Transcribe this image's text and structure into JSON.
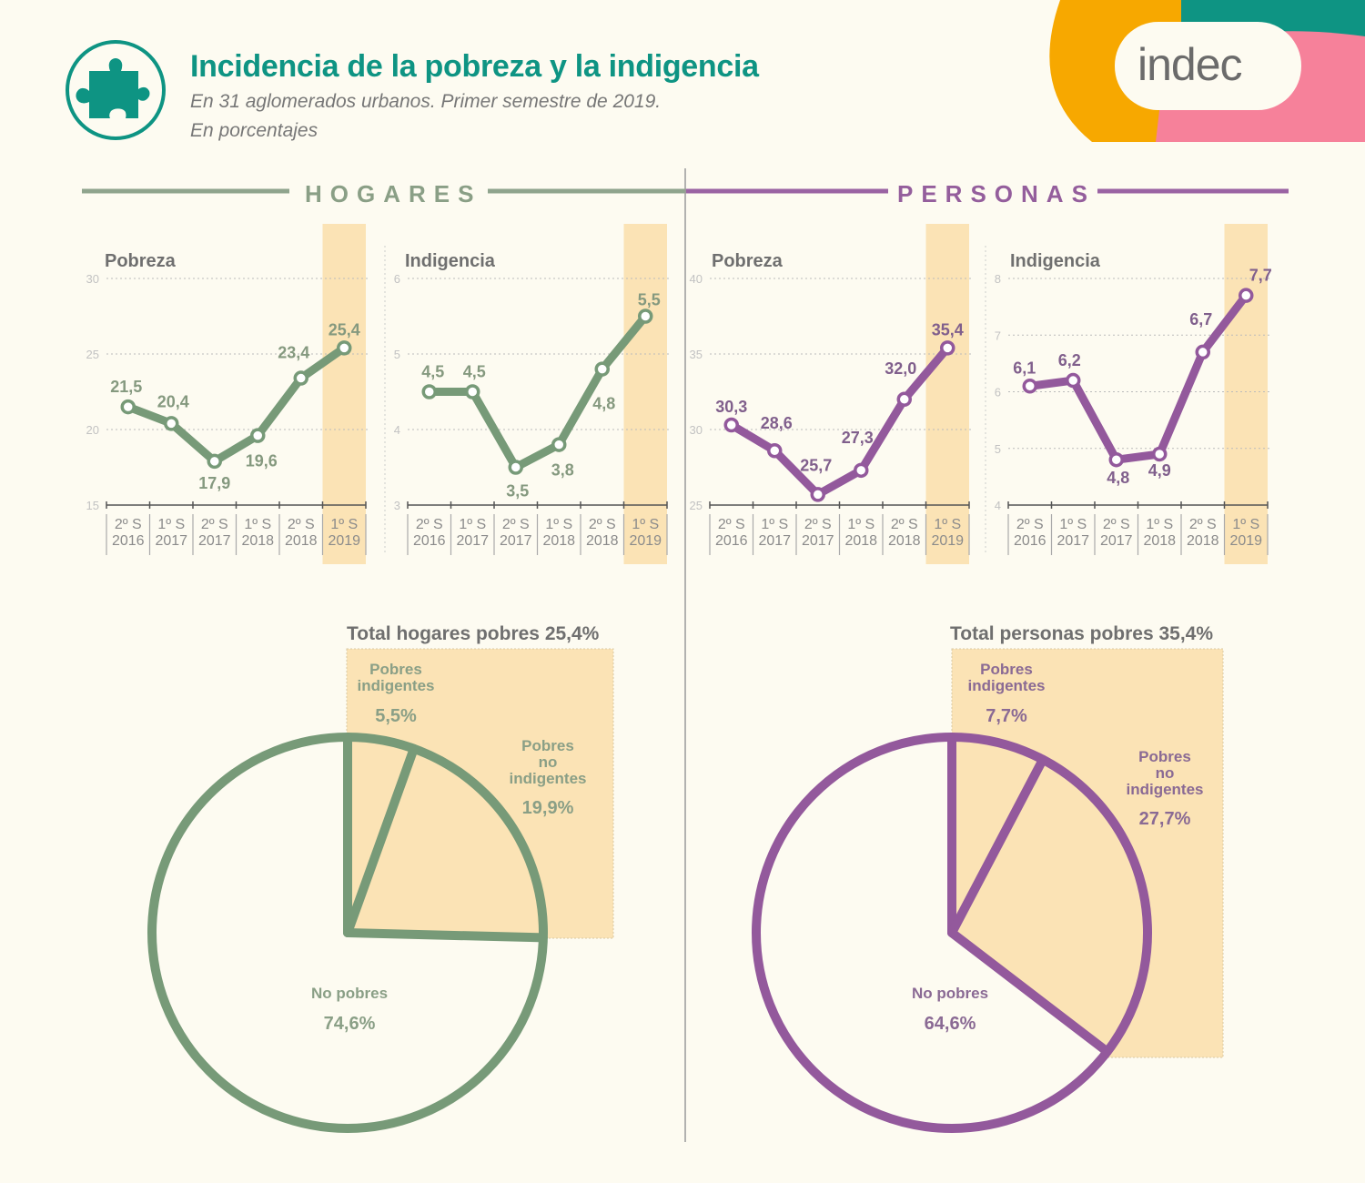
{
  "header": {
    "title": "Incidencia de la pobreza y la indigencia",
    "subtitle_line1": "En 31 aglomerados urbanos. Primer semestre de 2019.",
    "subtitle_line2": "En porcentajes",
    "icon": "puzzle-piece-icon",
    "logo_text": "indec"
  },
  "colors": {
    "background": "#fdfbf1",
    "title_teal": "#0e9483",
    "hogares_green": "#779a78",
    "personas_purple": "#93599c",
    "highlight_band": "#fbe3b5",
    "logo_orange": "#f7a800",
    "logo_teal": "#0e9483",
    "logo_pink": "#f6819a"
  },
  "sections": {
    "hogares": "HOGARES",
    "personas": "PERSONAS"
  },
  "chart_data": [
    {
      "type": "line",
      "group": "Hogares",
      "title": "Pobreza",
      "categories": [
        "2º S 2016",
        "1º S 2017",
        "2º S 2017",
        "1º S 2018",
        "2º S 2018",
        "1º S 2019"
      ],
      "values": [
        21.5,
        20.4,
        17.9,
        19.6,
        23.4,
        25.4
      ],
      "labels": [
        "21,5",
        "20,4",
        "17,9",
        "19,6",
        "23,4",
        "25,4"
      ],
      "yticks": [
        15,
        20,
        25,
        30
      ],
      "ylim": [
        15,
        30
      ],
      "grid": true,
      "highlight_category": "1º S 2019"
    },
    {
      "type": "line",
      "group": "Hogares",
      "title": "Indigencia",
      "categories": [
        "2º S 2016",
        "1º S 2017",
        "2º S 2017",
        "1º S 2018",
        "2º S 2018",
        "1º S 2019"
      ],
      "values": [
        4.5,
        4.5,
        3.5,
        3.8,
        4.8,
        5.5
      ],
      "labels": [
        "4,5",
        "4,5",
        "3,5",
        "3,8",
        "4,8",
        "5,5"
      ],
      "yticks": [
        3,
        4,
        5,
        6
      ],
      "ylim": [
        3,
        6
      ],
      "grid": true,
      "highlight_category": "1º S 2019"
    },
    {
      "type": "line",
      "group": "Personas",
      "title": "Pobreza",
      "categories": [
        "2º S 2016",
        "1º S 2017",
        "2º S 2017",
        "1º S 2018",
        "2º S 2018",
        "1º S 2019"
      ],
      "values": [
        30.3,
        28.6,
        25.7,
        27.3,
        32.0,
        35.4
      ],
      "labels": [
        "30,3",
        "28,6",
        "25,7",
        "27,3",
        "32,0",
        "35,4"
      ],
      "yticks": [
        25,
        30,
        35,
        40
      ],
      "ylim": [
        25,
        40
      ],
      "grid": true,
      "highlight_category": "1º S 2019"
    },
    {
      "type": "line",
      "group": "Personas",
      "title": "Indigencia",
      "categories": [
        "2º S 2016",
        "1º S 2017",
        "2º S 2017",
        "1º S 2018",
        "2º S 2018",
        "1º S 2019"
      ],
      "values": [
        6.1,
        6.2,
        4.8,
        4.9,
        6.7,
        7.7
      ],
      "labels": [
        "6,1",
        "6,2",
        "4,8",
        "4,9",
        "6,7",
        "7,7"
      ],
      "yticks": [
        4,
        5,
        6,
        7,
        8
      ],
      "ylim": [
        4,
        8
      ],
      "grid": true,
      "highlight_category": "1º S 2019"
    },
    {
      "type": "pie",
      "group": "Hogares",
      "title": "Total hogares pobres 25,4%",
      "slices": [
        {
          "name": "Pobres indigentes",
          "value": 5.5,
          "label": "5,5%"
        },
        {
          "name": "Pobres no indigentes",
          "value": 19.9,
          "label": "19,9%"
        },
        {
          "name": "No pobres",
          "value": 74.6,
          "label": "74,6%"
        }
      ]
    },
    {
      "type": "pie",
      "group": "Personas",
      "title": "Total personas pobres 35,4%",
      "slices": [
        {
          "name": "Pobres indigentes",
          "value": 7.7,
          "label": "7,7%"
        },
        {
          "name": "Pobres no indigentes",
          "value": 27.7,
          "label": "27,7%"
        },
        {
          "name": "No pobres",
          "value": 64.6,
          "label": "64,6%"
        }
      ]
    }
  ],
  "category_parts": [
    {
      "sem": "2º S",
      "year": "2016"
    },
    {
      "sem": "1º S",
      "year": "2017"
    },
    {
      "sem": "2º S",
      "year": "2017"
    },
    {
      "sem": "1º S",
      "year": "2018"
    },
    {
      "sem": "2º S",
      "year": "2018"
    },
    {
      "sem": "1º S",
      "year": "2019"
    }
  ],
  "pies": {
    "hogares": {
      "title": "Total hogares pobres 25,4%",
      "indig_label_1": "Pobres",
      "indig_label_2": "indigentes",
      "indig_value": "5,5%",
      "noindig_label_1": "Pobres",
      "noindig_label_2": "no",
      "noindig_label_3": "indigentes",
      "noindig_value": "19,9%",
      "nopobres_label": "No pobres",
      "nopobres_value": "74,6%"
    },
    "personas": {
      "title": "Total personas pobres 35,4%",
      "indig_label_1": "Pobres",
      "indig_label_2": "indigentes",
      "indig_value": "7,7%",
      "noindig_label_1": "Pobres",
      "noindig_label_2": "no",
      "noindig_label_3": "indigentes",
      "noindig_value": "27,7%",
      "nopobres_label": "No pobres",
      "nopobres_value": "64,6%"
    }
  }
}
